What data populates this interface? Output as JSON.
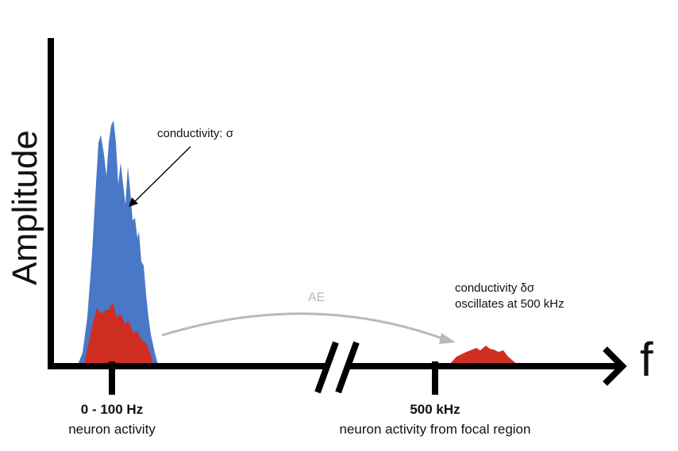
{
  "diagram": {
    "y_axis_label": "Amplitude",
    "x_axis_label": "f",
    "ticks": [
      {
        "title": "0 - 100 Hz",
        "subtitle": "neuron activity"
      },
      {
        "title": "500 kHz",
        "subtitle": "neuron activity from focal region"
      }
    ],
    "annotations": {
      "low_band": "conductivity: σ",
      "high_band_line1": "conductivity δσ",
      "high_band_line2": "oscillates at 500 kHz",
      "arrow": "AE"
    },
    "colors": {
      "axis": "#000000",
      "neural_signal": "#4a78c8",
      "modulated_component": "#d12e23",
      "ae_arrow": "#b9b9b9"
    }
  }
}
